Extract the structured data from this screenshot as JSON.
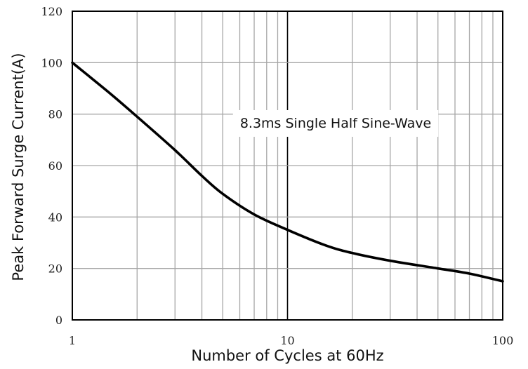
{
  "chart_data": {
    "type": "line",
    "title": "",
    "xlabel": "Number of Cycles at 60Hz",
    "ylabel": "Peak Forward Surge Current(A)",
    "x_scale": "log",
    "xlim": [
      1,
      100
    ],
    "ylim": [
      0,
      120
    ],
    "x_ticks": [
      "1",
      "10",
      "100"
    ],
    "y_ticks": [
      "0",
      "20",
      "40",
      "60",
      "80",
      "100",
      "120"
    ],
    "grid": true,
    "legend": "none",
    "annotation": "8.3ms Single Half Sine-Wave",
    "series": [
      {
        "color": "#000000",
        "x": [
          1,
          1.5,
          2,
          3,
          4,
          5,
          7,
          10,
          15,
          20,
          30,
          50,
          70,
          100
        ],
        "y": [
          100,
          88,
          79,
          66,
          56,
          49,
          41,
          35,
          29,
          26,
          23,
          20,
          18,
          15
        ]
      }
    ]
  }
}
